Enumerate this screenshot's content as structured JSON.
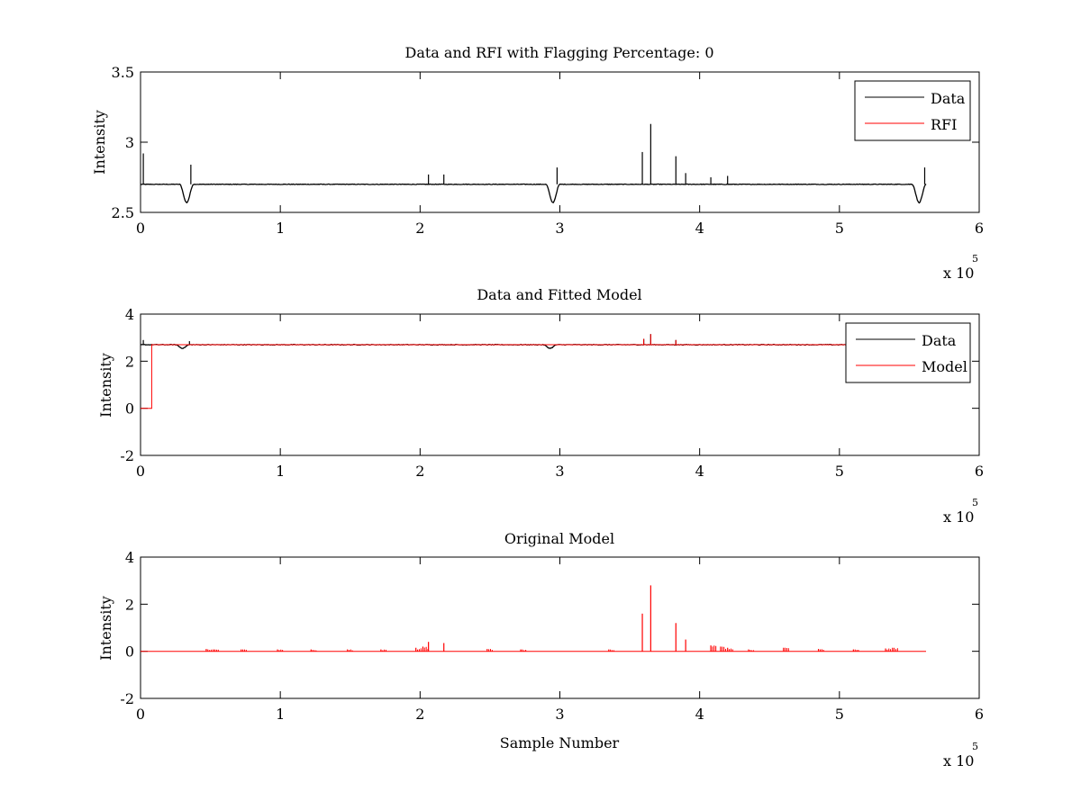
{
  "colors": {
    "data": "#000000",
    "rfi": "#ff0000",
    "model": "#ff0000",
    "axes": "#000000",
    "background": "#ffffff"
  },
  "chart_data": [
    {
      "type": "line",
      "title": "Data and RFI with Flagging Percentage: 0",
      "xlabel": "",
      "ylabel": "Intensity",
      "xlim": [
        0,
        6
      ],
      "ylim": [
        2.5,
        3.5
      ],
      "x_ticks": [
        "0",
        "1",
        "2",
        "3",
        "4",
        "5",
        "6"
      ],
      "y_ticks": [
        "2.5",
        "3",
        "3.5"
      ],
      "x_multiplier": {
        "base": "x 10",
        "exponent": "5"
      },
      "legend": {
        "position": "top-right",
        "entries": [
          "Data",
          "RFI"
        ]
      },
      "series": [
        {
          "name": "Data",
          "color": "#000000",
          "baseline": 2.7,
          "dips": [
            [
              0.33,
              2.57
            ],
            [
              2.95,
              2.57
            ],
            [
              5.57,
              2.57
            ]
          ],
          "spikes": [
            [
              0.02,
              2.92
            ],
            [
              0.36,
              2.84
            ],
            [
              2.98,
              2.82
            ],
            [
              3.59,
              2.93
            ],
            [
              3.65,
              3.13
            ],
            [
              3.83,
              2.9
            ],
            [
              3.9,
              2.78
            ],
            [
              5.61,
              2.82
            ],
            [
              2.06,
              2.77
            ],
            [
              2.17,
              2.77
            ],
            [
              4.08,
              2.75
            ],
            [
              4.2,
              2.76
            ]
          ],
          "x_end": 5.62
        }
      ]
    },
    {
      "type": "line",
      "title": "Data and Fitted Model",
      "xlabel": "",
      "ylabel": "Intensity",
      "xlim": [
        0,
        6
      ],
      "ylim": [
        -2,
        4
      ],
      "x_ticks": [
        "0",
        "1",
        "2",
        "3",
        "4",
        "5",
        "6"
      ],
      "y_ticks": [
        "-2",
        "0",
        "2",
        "4"
      ],
      "x_multiplier": {
        "base": "x 10",
        "exponent": "5"
      },
      "legend": {
        "position": "top-right",
        "entries": [
          "Data",
          "Model"
        ]
      },
      "series": [
        {
          "name": "Data",
          "color": "#000000",
          "baseline": 2.7,
          "dips": [
            [
              0.3,
              2.55
            ],
            [
              2.93,
              2.55
            ],
            [
              5.57,
              2.55
            ]
          ],
          "spikes": [
            [
              0.02,
              2.9
            ],
            [
              0.35,
              2.85
            ],
            [
              3.6,
              2.95
            ],
            [
              3.65,
              3.15
            ],
            [
              3.83,
              2.9
            ]
          ],
          "x_end": 5.62
        },
        {
          "name": "Model",
          "color": "#ff0000",
          "segments": [
            [
              0,
              0
            ],
            [
              0.08,
              0
            ],
            [
              0.08,
              2.7
            ],
            [
              5.62,
              2.7
            ]
          ],
          "spikes": [
            [
              3.6,
              2.95
            ],
            [
              3.65,
              3.15
            ],
            [
              3.83,
              2.9
            ]
          ]
        }
      ]
    },
    {
      "type": "line",
      "title": "Original Model",
      "xlabel": "Sample Number",
      "ylabel": "Intensity",
      "xlim": [
        0,
        6
      ],
      "ylim": [
        -2,
        4
      ],
      "x_ticks": [
        "0",
        "1",
        "2",
        "3",
        "4",
        "5",
        "6"
      ],
      "y_ticks": [
        "-2",
        "0",
        "2",
        "4"
      ],
      "x_multiplier": {
        "base": "x 10",
        "exponent": "5"
      },
      "series": [
        {
          "name": "",
          "color": "#ff0000",
          "baseline": 0,
          "x_end": 5.62,
          "spikes": [
            [
              3.59,
              1.6
            ],
            [
              3.65,
              2.8
            ],
            [
              3.83,
              1.2
            ],
            [
              3.9,
              0.5
            ],
            [
              2.06,
              0.4
            ],
            [
              2.17,
              0.35
            ],
            [
              1.97,
              0.15
            ],
            [
              2.02,
              0.2
            ],
            [
              4.08,
              0.25
            ],
            [
              4.15,
              0.2
            ],
            [
              4.2,
              0.15
            ],
            [
              0.47,
              0.1
            ],
            [
              0.52,
              0.08
            ],
            [
              0.72,
              0.08
            ],
            [
              0.98,
              0.08
            ],
            [
              1.22,
              0.08
            ],
            [
              1.48,
              0.08
            ],
            [
              1.72,
              0.08
            ],
            [
              2.48,
              0.1
            ],
            [
              2.72,
              0.08
            ],
            [
              3.35,
              0.08
            ],
            [
              4.35,
              0.08
            ],
            [
              4.6,
              0.15
            ],
            [
              4.85,
              0.1
            ],
            [
              5.1,
              0.08
            ],
            [
              5.33,
              0.12
            ],
            [
              5.38,
              0.15
            ]
          ]
        }
      ]
    }
  ]
}
